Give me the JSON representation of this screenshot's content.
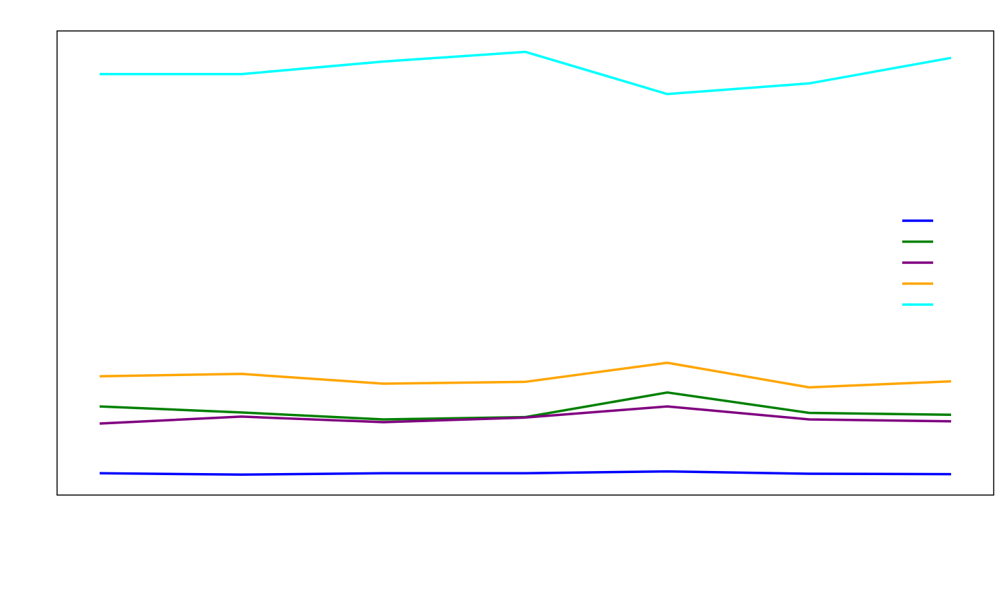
{
  "chart_data": {
    "type": "line",
    "title": "",
    "xlabel": "",
    "ylabel": "",
    "x": [
      1,
      2,
      3,
      4,
      5,
      6,
      7
    ],
    "xlim": [
      0.7,
      7.3
    ],
    "ylim": [
      0,
      1000
    ],
    "grid": false,
    "legend": {
      "placement": "center-right"
    },
    "series": [
      {
        "key": "blue",
        "color": "#0000ff",
        "values": [
          47,
          44,
          47,
          47,
          51,
          46,
          45
        ]
      },
      {
        "key": "green",
        "color": "#008000",
        "values": [
          191,
          178,
          163,
          168,
          221,
          177,
          173
        ]
      },
      {
        "key": "purple",
        "color": "#800080",
        "values": [
          154,
          169,
          157,
          167,
          191,
          163,
          159
        ]
      },
      {
        "key": "orange",
        "color": "#ffa500",
        "values": [
          256,
          261,
          240,
          244,
          285,
          232,
          245
        ]
      },
      {
        "key": "cyan",
        "color": "#00ffff",
        "values": [
          907,
          907,
          934,
          955,
          864,
          887,
          942
        ]
      }
    ]
  }
}
